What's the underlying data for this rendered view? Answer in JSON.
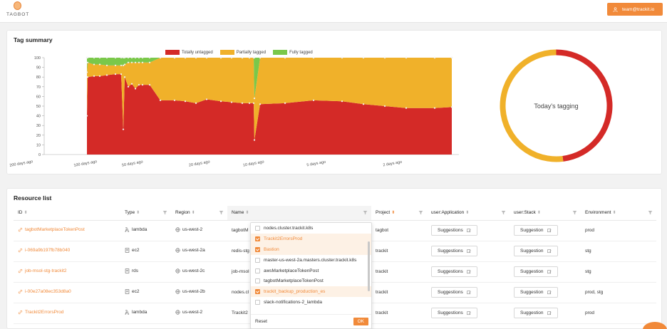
{
  "app": {
    "logo_text": "TAGBOT",
    "user_email": "team@trackit.io"
  },
  "colors": {
    "accent": "#f18a3a",
    "untagged": "#d42a27",
    "partial": "#f0b12a",
    "fully": "#7ac84a"
  },
  "tag_summary": {
    "title": "Tag summary",
    "donut_label": "Today's tagging",
    "chart_data": {
      "type": "area",
      "stacked": true,
      "title": "",
      "xlabel": "",
      "ylabel": "",
      "ylim": [
        0,
        100
      ],
      "yticks": [
        0,
        10,
        20,
        30,
        40,
        50,
        60,
        70,
        80,
        90,
        100
      ],
      "x_tick_labels": [
        "200 days ago",
        "100 days ago",
        "50 days ago",
        "20 days ago",
        "10 days ago",
        "5 days ago",
        "2 days ago"
      ],
      "legend": {
        "placement": "top-center",
        "entries": [
          "Totally untagged",
          "Partially tagged",
          "Fully tagged"
        ]
      },
      "grid": false,
      "series": [
        {
          "name": "Totally untagged",
          "values": [
            40,
            80,
            81,
            81,
            82,
            83,
            83,
            26,
            80,
            70,
            73,
            68,
            72,
            72,
            72,
            56,
            56,
            55,
            53,
            57,
            55,
            54,
            53,
            53,
            53,
            15,
            52,
            53,
            56,
            55,
            52,
            50,
            48,
            48,
            49
          ]
        },
        {
          "name": "Partially tagged",
          "values": [
            45,
            15,
            12,
            12,
            10,
            9,
            9,
            66,
            13,
            25,
            22,
            27,
            23,
            23,
            23,
            44,
            44,
            45,
            47,
            43,
            45,
            46,
            47,
            47,
            47,
            43,
            48,
            47,
            44,
            45,
            48,
            50,
            52,
            52,
            51
          ]
        },
        {
          "name": "Fully tagged",
          "values": [
            15,
            5,
            7,
            7,
            8,
            8,
            8,
            8,
            7,
            5,
            5,
            5,
            5,
            5,
            5,
            0,
            0,
            0,
            0,
            0,
            0,
            0,
            0,
            0,
            0,
            42,
            0,
            0,
            0,
            0,
            0,
            0,
            0,
            0,
            0
          ]
        }
      ]
    },
    "donut_data": {
      "type": "pie",
      "slices": [
        {
          "name": "Totally untagged",
          "value": 48
        },
        {
          "name": "Partially tagged",
          "value": 52
        }
      ]
    }
  },
  "resources": {
    "title": "Resource list",
    "columns": [
      {
        "label": "ID"
      },
      {
        "label": "Type"
      },
      {
        "label": "Region"
      },
      {
        "label": "Name"
      },
      {
        "label": "Project"
      },
      {
        "label": "user:Application"
      },
      {
        "label": "user:Stack"
      },
      {
        "label": "Environment"
      }
    ],
    "rows": [
      {
        "id": "tagbotMarketplaceTokenPost",
        "type": "lambda",
        "region": "us-west-2",
        "name": "tagbotM",
        "project": "tagbot",
        "app": "Suggestions",
        "stack": "Suggestion",
        "env": "prod"
      },
      {
        "id": "i-069a9b197fb78b040",
        "type": "ec2",
        "region": "us-west-2a",
        "name": "redis-stg",
        "project": "trackit",
        "app": "Suggestions",
        "stack": "Suggestion",
        "env": "stg"
      },
      {
        "id": "job-msol-stg-trackit2",
        "type": "rds",
        "region": "us-west-2c",
        "name": "job-msol",
        "project": "trackit",
        "app": "Suggestions",
        "stack": "Suggestion",
        "env": "stg"
      },
      {
        "id": "i-00e27a08ec353d8a0",
        "type": "ec2",
        "region": "us-west-2b",
        "name": "nodes.cl",
        "project": "trackit",
        "app": "Suggestions",
        "stack": "Suggestion",
        "env": "prod, stg"
      },
      {
        "id": "Trackit2ErrorsProd",
        "type": "lambda",
        "region": "us-west-2",
        "name": "Trackit2",
        "project": "trackit",
        "app": "Suggestions",
        "stack": "Suggestion",
        "env": "prod"
      }
    ]
  },
  "name_filter": {
    "options": [
      {
        "label": "nodes.cluster.trackit.k8s",
        "checked": false
      },
      {
        "label": "Trackit2ErrorsProd",
        "checked": true
      },
      {
        "label": "Bastion",
        "checked": true
      },
      {
        "label": "master-us-west-2a.masters.cluster.trackit.k8s",
        "checked": false
      },
      {
        "label": "awsMarketplaceTokenPost",
        "checked": false
      },
      {
        "label": "tagbotMarketplaceTokenPost",
        "checked": false
      },
      {
        "label": "trackit_backup_production_es",
        "checked": true
      },
      {
        "label": "slack-notifications-2_lambda",
        "checked": false
      }
    ],
    "reset_label": "Reset",
    "ok_label": "OK"
  }
}
